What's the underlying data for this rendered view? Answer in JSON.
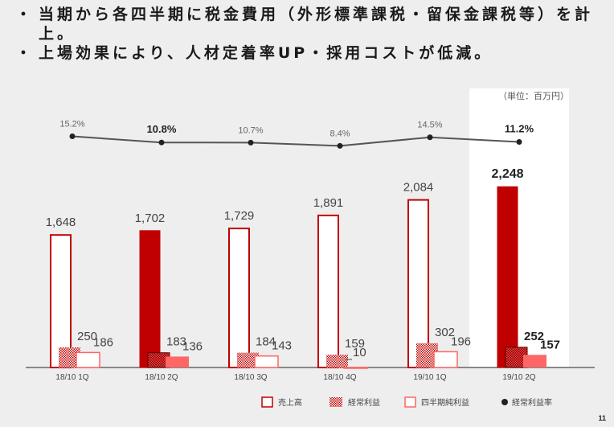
{
  "header": {
    "bullets": [
      "当期から各四半期に税金費用（外形標準課税・留保金課税等）を計上。",
      "上場効果により、人材定着率UP・採用コストが低減。"
    ]
  },
  "page_number": "11",
  "chart_data": {
    "type": "bar",
    "unit_label": "（単位：百万円）",
    "categories": [
      "18/10 1Q",
      "18/10 2Q",
      "18/10 3Q",
      "18/10 4Q",
      "19/10 1Q",
      "19/10 2Q"
    ],
    "series": [
      {
        "name": "売上高",
        "values": [
          1648,
          1702,
          1729,
          1891,
          2084,
          2248
        ],
        "labels": [
          "1,648",
          "1,702",
          "1,729",
          "1,891",
          "2,084",
          "2,248"
        ]
      },
      {
        "name": "経常利益",
        "values": [
          250,
          183,
          184,
          159,
          302,
          252
        ],
        "labels": [
          "250",
          "183",
          "184",
          "159",
          "302",
          "252"
        ]
      },
      {
        "name": "四半期純利益",
        "values": [
          186,
          136,
          143,
          -10,
          196,
          157
        ],
        "labels": [
          "186",
          "136",
          "143",
          "-10",
          "196",
          "157"
        ]
      }
    ],
    "line_series": {
      "name": "経常利益率",
      "values": [
        15.2,
        10.8,
        10.7,
        8.4,
        14.5,
        11.2
      ],
      "labels": [
        "15.2%",
        "10.8%",
        "10.7%",
        "8.4%",
        "14.5%",
        "11.2%"
      ],
      "bold_labels": [
        false,
        true,
        false,
        false,
        false,
        true
      ]
    },
    "highlighted_categories": [
      "18/10 2Q",
      "19/10 2Q"
    ],
    "colors": {
      "red": "#c00000",
      "light_red": "#ff6666",
      "line": "#555555",
      "marker": "#222222",
      "highlight_bg": "#ffffff"
    }
  }
}
